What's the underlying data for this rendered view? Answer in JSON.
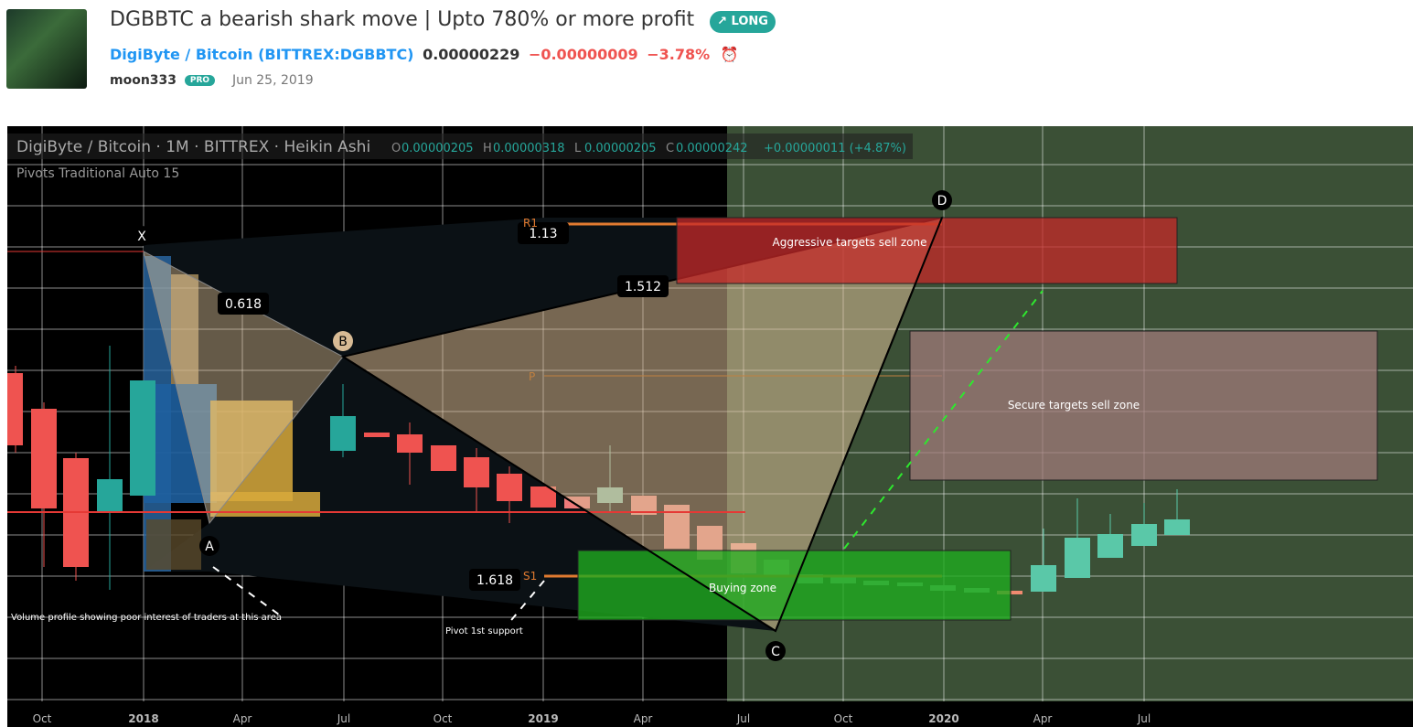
{
  "header": {
    "title": "DGBBTC a bearish shark move | Upto 780% or more profit",
    "badge": "LONG",
    "symbol_name": "DigiByte / Bitcoin",
    "symbol_code": "(BITTREX:DGBBTC)",
    "price": "0.00000229",
    "change": "−0.00000009",
    "change_pct": "−3.78%",
    "author": "moon333",
    "author_badge": "PRO",
    "date": "Jun 25, 2019"
  },
  "chart": {
    "legend": "DigiByte / Bitcoin · 1M · BITTREX · Heikin Ashi",
    "ohlc": [
      {
        "label": "O",
        "value": "0.00000205"
      },
      {
        "label": "H",
        "value": "0.00000318"
      },
      {
        "label": "L",
        "value": "0.00000205"
      },
      {
        "label": "C",
        "value": "0.00000242"
      }
    ],
    "ohlc_change": "+0.00000011 (+4.87%)",
    "indicator": "Pivots Traditional Auto 15",
    "x_labels": [
      "Oct",
      "2018",
      "Apr",
      "Jul",
      "Oct",
      "2019",
      "Apr",
      "Jul",
      "Oct",
      "2020",
      "Apr",
      "Jul"
    ],
    "points": [
      "X",
      "A",
      "B",
      "C",
      "D"
    ],
    "ratios": [
      "0.618",
      "1.13",
      "1.512",
      "1.618"
    ],
    "zones": [
      "Aggressive targets sell zone",
      "Secure targets sell zone",
      "Buying zone"
    ],
    "pivots": [
      "P",
      "S1",
      "R1"
    ],
    "annotations": [
      "Volume profile showing poor interest of traders at this area",
      "Pivot 1st support"
    ]
  }
}
